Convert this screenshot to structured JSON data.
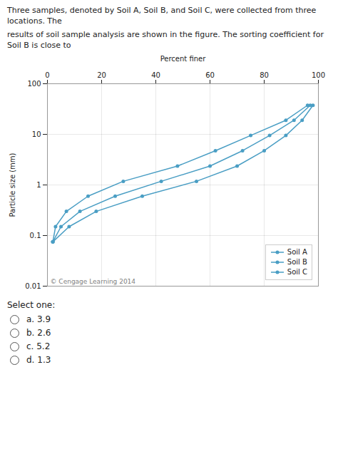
{
  "chart_data": {
    "type": "line",
    "x_label": "Percent finer",
    "y_label": "Particle size (mm)",
    "log": "y",
    "xlim": [
      0,
      100
    ],
    "xticks": [
      0,
      20,
      40,
      60,
      80,
      100
    ],
    "ylim": [
      0.01,
      100
    ],
    "yticks": [
      0.01,
      0.1,
      1,
      10,
      100
    ],
    "grid": true,
    "legend": "lower right",
    "color": "#4a9ec4",
    "marker": "circle",
    "series": [
      {
        "name": "Soil A",
        "x": [
          2,
          8,
          18,
          35,
          55,
          70,
          80,
          88,
          94,
          98
        ],
        "values": [
          0.075,
          0.15,
          0.3,
          0.6,
          1.18,
          2.36,
          4.75,
          9.5,
          19.0,
          37.5
        ]
      },
      {
        "name": "Soil B",
        "x": [
          2,
          5,
          12,
          25,
          42,
          60,
          72,
          82,
          91,
          97
        ],
        "values": [
          0.075,
          0.15,
          0.3,
          0.6,
          1.18,
          2.36,
          4.75,
          9.5,
          19.0,
          37.5
        ]
      },
      {
        "name": "Soil C",
        "x": [
          2,
          3,
          7,
          15,
          28,
          48,
          62,
          75,
          88,
          96
        ],
        "values": [
          0.075,
          0.15,
          0.3,
          0.6,
          1.18,
          2.36,
          4.75,
          9.5,
          19.0,
          37.5
        ]
      }
    ],
    "annotations": [
      "© Cengage Learning 2014"
    ]
  },
  "question": [
    "Three samples, denoted by Soil A, Soil B, and Soil C, were collected from three locations. The",
    "results of soil sample analysis are shown in the figure. The sorting coefficient for Soil B is close to"
  ],
  "select_one": "Select one:",
  "answer_choices": [
    "a. 3.9",
    "b. 2.6",
    "c. 5.2",
    "d. 1.3"
  ]
}
